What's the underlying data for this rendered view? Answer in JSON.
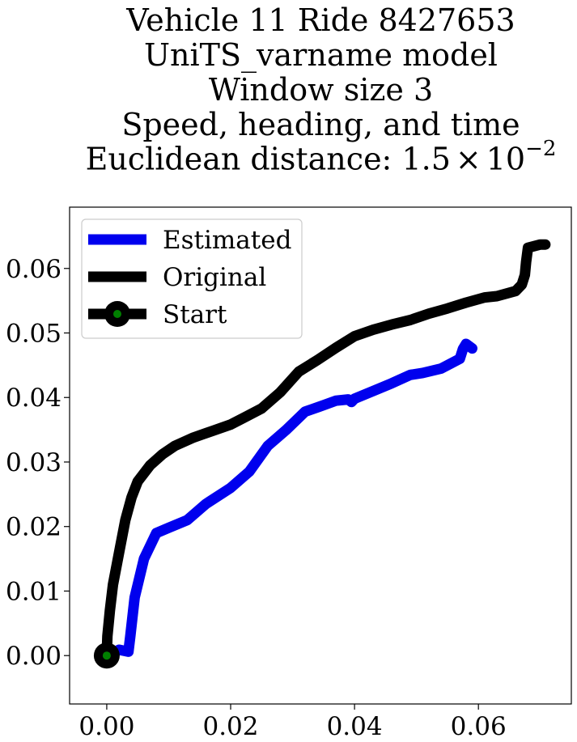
{
  "chart_data": {
    "type": "line",
    "title": [
      "Vehicle 11 Ride 8427653",
      "UniTS_varname model",
      "Window size 3",
      "Speed, heading, and time"
    ],
    "subtitle_prefix": "Euclidean distance: ",
    "subtitle_mantissa": "1.5",
    "subtitle_times": "×",
    "subtitle_base": "10",
    "subtitle_exponent": "−2",
    "xlabel": "",
    "ylabel": "",
    "xlim": [
      -0.006,
      0.075
    ],
    "ylim": [
      -0.0075,
      0.0695
    ],
    "xticks": [
      0.0,
      0.02,
      0.04,
      0.06
    ],
    "xtick_labels": [
      "0.00",
      "0.02",
      "0.04",
      "0.06"
    ],
    "yticks": [
      0.0,
      0.01,
      0.02,
      0.03,
      0.04,
      0.05,
      0.06
    ],
    "ytick_labels": [
      "0.00",
      "0.01",
      "0.02",
      "0.03",
      "0.04",
      "0.05",
      "0.06"
    ],
    "grid": false,
    "legend_position": "upper-left",
    "legend": [
      "Estimated",
      "Original",
      "Start"
    ],
    "series": [
      {
        "name": "Estimated",
        "color": "#0000ee",
        "x": [
          0.0,
          0.002,
          0.0035,
          0.0038,
          0.0045,
          0.006,
          0.008,
          0.01,
          0.013,
          0.016,
          0.02,
          0.023,
          0.026,
          0.029,
          0.032,
          0.035,
          0.037,
          0.039,
          0.0395,
          0.04,
          0.043,
          0.046,
          0.049,
          0.051,
          0.054,
          0.056,
          0.057,
          0.0575,
          0.058,
          0.059
        ],
        "y": [
          0.0,
          0.0009,
          0.0006,
          0.003,
          0.009,
          0.015,
          0.019,
          0.0198,
          0.021,
          0.0235,
          0.026,
          0.0285,
          0.0325,
          0.035,
          0.0378,
          0.0388,
          0.0395,
          0.0397,
          0.0393,
          0.0398,
          0.041,
          0.0422,
          0.0435,
          0.0438,
          0.0445,
          0.0455,
          0.046,
          0.0475,
          0.0483,
          0.0476
        ]
      },
      {
        "name": "Original",
        "color": "#000000",
        "x": [
          0.0,
          0.0001,
          0.0005,
          0.001,
          0.002,
          0.003,
          0.004,
          0.005,
          0.007,
          0.009,
          0.011,
          0.014,
          0.017,
          0.02,
          0.022,
          0.025,
          0.028,
          0.031,
          0.034,
          0.037,
          0.04,
          0.043,
          0.046,
          0.049,
          0.052,
          0.055,
          0.058,
          0.061,
          0.063,
          0.066,
          0.067,
          0.0675,
          0.0677,
          0.068,
          0.07,
          0.0708
        ],
        "y": [
          0.0,
          0.003,
          0.007,
          0.011,
          0.016,
          0.021,
          0.0245,
          0.027,
          0.0295,
          0.0312,
          0.0325,
          0.0338,
          0.0348,
          0.0358,
          0.0368,
          0.0383,
          0.0408,
          0.044,
          0.0458,
          0.0477,
          0.0495,
          0.0505,
          0.0513,
          0.052,
          0.053,
          0.0538,
          0.0547,
          0.0555,
          0.0557,
          0.0565,
          0.0575,
          0.059,
          0.061,
          0.0632,
          0.0637,
          0.0637
        ]
      }
    ],
    "start_point": {
      "name": "Start",
      "x": 0.0,
      "y": 0.0,
      "fill": "#008000",
      "edge": "#000000"
    }
  }
}
